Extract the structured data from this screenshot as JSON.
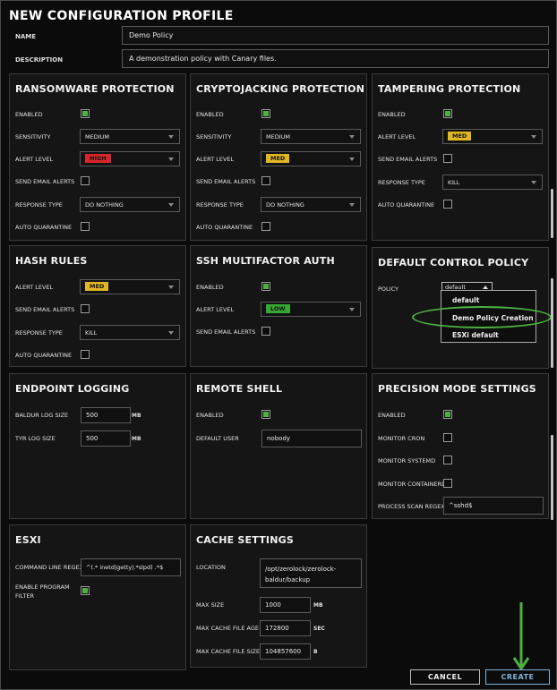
{
  "page_title": "NEW CONFIGURATION PROFILE",
  "name": {
    "label": "NAME",
    "value": "Demo Policy"
  },
  "description": {
    "label": "DESCRIPTION",
    "value": "A demonstration policy with Canary files."
  },
  "ransomware": {
    "title": "RANSOMWARE PROTECTION",
    "enabled_label": "ENABLED",
    "sensitivity_label": "SENSITIVITY",
    "sensitivity_value": "MEDIUM",
    "alert_label": "ALERT LEVEL",
    "alert_value": "HIGH",
    "email_label": "SEND EMAIL ALERTS",
    "response_label": "RESPONSE TYPE",
    "response_value": "DO NOTHING",
    "quarantine_label": "AUTO QUARANTINE"
  },
  "cryptojacking": {
    "title": "CRYPTOJACKING PROTECTION",
    "enabled_label": "ENABLED",
    "sensitivity_label": "SENSITIVITY",
    "sensitivity_value": "MEDIUM",
    "alert_label": "ALERT LEVEL",
    "alert_value": "MED",
    "email_label": "SEND EMAIL ALERTS",
    "response_label": "RESPONSE TYPE",
    "response_value": "DO NOTHING",
    "quarantine_label": "AUTO QUARANTINE"
  },
  "tampering": {
    "title": "TAMPERING PROTECTION",
    "enabled_label": "ENABLED",
    "alert_label": "ALERT LEVEL",
    "alert_value": "MED",
    "email_label": "SEND EMAIL ALERTS",
    "response_label": "RESPONSE TYPE",
    "response_value": "KILL",
    "quarantine_label": "AUTO QUARANTINE"
  },
  "hash_rules": {
    "title": "HASH RULES",
    "alert_label": "ALERT LEVEL",
    "alert_value": "MED",
    "email_label": "SEND EMAIL ALERTS",
    "response_label": "RESPONSE TYPE",
    "response_value": "KILL",
    "quarantine_label": "AUTO QUARANTINE"
  },
  "ssh_mfa": {
    "title": "SSH MULTIFACTOR AUTH",
    "enabled_label": "ENABLED",
    "alert_label": "ALERT LEVEL",
    "alert_value": "LOW",
    "email_label": "SEND EMAIL ALERTS"
  },
  "default_control": {
    "title": "DEFAULT CONTROL POLICY",
    "policy_label": "POLICY",
    "policy_value": "default",
    "options": [
      "default",
      "Demo Policy Creation",
      "ESXi default"
    ]
  },
  "endpoint_logging": {
    "title": "ENDPOINT LOGGING",
    "baldur_label": "BALDUR LOG SIZE",
    "baldur_value": "500",
    "baldur_unit": "MB",
    "tyr_label": "TYR LOG SIZE",
    "tyr_value": "500",
    "tyr_unit": "MB"
  },
  "remote_shell": {
    "title": "REMOTE SHELL",
    "enabled_label": "ENABLED",
    "user_label": "DEFAULT USER",
    "user_value": "nobody"
  },
  "precision": {
    "title": "PRECISION MODE SETTINGS",
    "enabled_label": "ENABLED",
    "cron_label": "MONITOR CRON",
    "systemd_label": "MONITOR SYSTEMD",
    "containerd_label": "MONITOR CONTAINERD",
    "regex_label": "PROCESS SCAN REGEX",
    "regex_value": "^sshd$"
  },
  "esxi": {
    "title": "ESXI",
    "cmd_label": "COMMAND LINE REGEX",
    "cmd_value": "^(.* inetd|getty|.*slpd) .*$",
    "filter_label_1": "ENABLE PROGRAM",
    "filter_label_2": "FILTER"
  },
  "cache": {
    "title": "CACHE SETTINGS",
    "location_label": "LOCATION",
    "location_line1": "/opt/zerolock/zerolock-",
    "location_line2": "baldur/backup",
    "max_size_label": "MAX SIZE",
    "max_size_value": "1000",
    "max_size_unit": "MB",
    "max_age_label": "MAX CACHE FILE AGE",
    "max_age_value": "172800",
    "max_age_unit": "SEC",
    "max_file_label": "MAX CACHE FILE SIZE",
    "max_file_value": "104857600",
    "max_file_unit": "B"
  },
  "buttons": {
    "cancel": "CANCEL",
    "create": "CREATE"
  },
  "colors": {
    "checkbox_on": "#4cb042",
    "high": "#d9262c",
    "med": "#e0b723",
    "low": "#36a833",
    "highlight": "#4cb042",
    "create_text": "#7fb2d8"
  }
}
